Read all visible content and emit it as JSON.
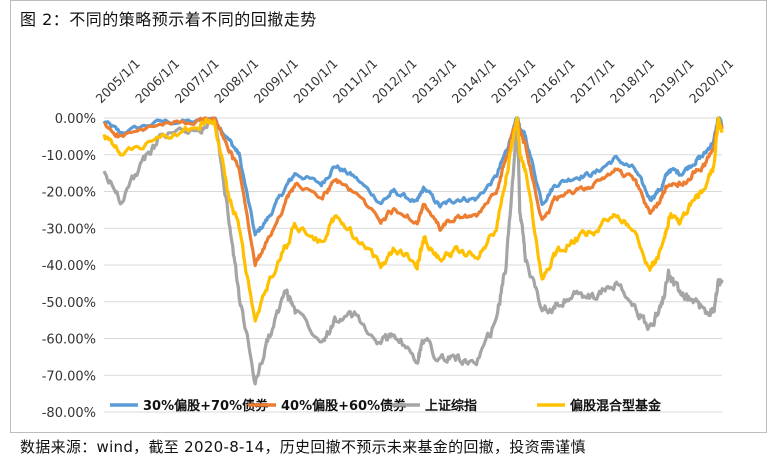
{
  "figure_title": "图 2：不同的策略预示着不同的回撤走势",
  "source_note": "数据来源：wind，截至 2020-8-14，历史回撤不预示未来基金的回撤，投资需谨慎",
  "chart_data": {
    "type": "line",
    "title": "",
    "xlabel": "",
    "ylabel": "",
    "x_tick_labels": [
      "2005/1/1",
      "2006/1/1",
      "2007/1/1",
      "2008/1/1",
      "2009/1/1",
      "2010/1/1",
      "2011/1/1",
      "2012/1/1",
      "2013/1/1",
      "2014/1/1",
      "2015/1/1",
      "2016/1/1",
      "2017/1/1",
      "2018/1/1",
      "2019/1/1",
      "2020/1/1"
    ],
    "x_range": [
      "2005-01-01",
      "2020-08-14"
    ],
    "y_tick_labels": [
      "0.00%",
      "-10.00%",
      "-20.00%",
      "-30.00%",
      "-40.00%",
      "-50.00%",
      "-60.00%",
      "-70.00%",
      "-80.00%"
    ],
    "ylim": [
      -80,
      0
    ],
    "grid": "horizontal",
    "legend_position": "bottom",
    "series": [
      {
        "name": "30%偏股+70%债券",
        "color": "#5b9bd5",
        "x": [
          "2005-01-01",
          "2005-06-01",
          "2006-06-01",
          "2007-06-01",
          "2007-10-15",
          "2008-03-01",
          "2008-06-01",
          "2008-10-28",
          "2009-03-01",
          "2009-08-01",
          "2009-11-01",
          "2010-07-01",
          "2010-11-01",
          "2011-05-01",
          "2011-12-31",
          "2012-05-01",
          "2012-12-01",
          "2013-02-01",
          "2013-06-30",
          "2013-12-01",
          "2014-06-01",
          "2014-12-01",
          "2015-03-01",
          "2015-06-12",
          "2015-07-08",
          "2015-08-26",
          "2016-01-28",
          "2016-06-01",
          "2016-12-01",
          "2017-06-01",
          "2017-12-01",
          "2018-06-01",
          "2018-10-19",
          "2019-02-01",
          "2019-04-15",
          "2019-08-01",
          "2019-12-01",
          "2020-03-01",
          "2020-06-01",
          "2020-07-10",
          "2020-08-14"
        ],
        "values": [
          -1,
          -4,
          -1,
          -1,
          0,
          -6,
          -10,
          -32,
          -27,
          -19,
          -15,
          -18,
          -13,
          -16,
          -23,
          -20,
          -23,
          -19,
          -24,
          -22,
          -22,
          -16,
          -9,
          0,
          -3,
          -5,
          -23,
          -18,
          -16,
          -15,
          -11,
          -14,
          -22,
          -19,
          -14,
          -15,
          -12,
          -10,
          -6,
          0,
          -2
        ]
      },
      {
        "name": "40%偏股+60%债券",
        "color": "#ed7d31",
        "x": [
          "2005-01-01",
          "2005-06-01",
          "2006-06-01",
          "2007-06-01",
          "2007-10-15",
          "2008-03-01",
          "2008-06-01",
          "2008-10-28",
          "2009-03-01",
          "2009-08-01",
          "2009-11-01",
          "2010-07-01",
          "2010-11-01",
          "2011-05-01",
          "2011-12-31",
          "2012-05-01",
          "2012-12-01",
          "2013-02-01",
          "2013-06-30",
          "2013-12-01",
          "2014-06-01",
          "2014-12-01",
          "2015-03-01",
          "2015-06-12",
          "2015-07-08",
          "2015-08-26",
          "2016-01-28",
          "2016-06-01",
          "2016-12-01",
          "2017-06-01",
          "2017-12-01",
          "2018-06-01",
          "2018-10-19",
          "2019-02-01",
          "2019-04-15",
          "2019-08-01",
          "2019-12-01",
          "2020-03-01",
          "2020-06-01",
          "2020-07-10",
          "2020-08-14"
        ],
        "values": [
          -2,
          -5,
          -2,
          -1,
          0,
          -9,
          -14,
          -40,
          -33,
          -23,
          -18,
          -22,
          -17,
          -20,
          -28,
          -25,
          -28,
          -24,
          -30,
          -27,
          -27,
          -20,
          -11,
          0,
          -4,
          -7,
          -28,
          -22,
          -20,
          -18,
          -14,
          -17,
          -26,
          -22,
          -17,
          -18,
          -15,
          -13,
          -8,
          0,
          -3
        ]
      },
      {
        "name": "上证综指",
        "color": "#a5a5a5",
        "x": [
          "2005-01-01",
          "2005-06-01",
          "2006-01-01",
          "2006-06-01",
          "2007-06-01",
          "2007-10-16",
          "2008-03-01",
          "2008-06-01",
          "2008-10-28",
          "2009-03-01",
          "2009-08-04",
          "2009-11-01",
          "2010-07-02",
          "2010-11-01",
          "2011-05-01",
          "2011-12-31",
          "2012-05-01",
          "2012-12-04",
          "2013-02-01",
          "2013-06-27",
          "2013-12-01",
          "2014-06-01",
          "2014-12-01",
          "2015-03-01",
          "2015-06-12",
          "2015-07-08",
          "2015-08-26",
          "2016-01-28",
          "2016-06-01",
          "2016-12-01",
          "2017-06-01",
          "2017-12-01",
          "2018-06-01",
          "2018-10-19",
          "2019-02-01",
          "2019-04-08",
          "2019-08-01",
          "2019-12-01",
          "2020-03-23",
          "2020-06-01",
          "2020-07-10",
          "2020-08-14"
        ],
        "values": [
          -15,
          -22,
          -12,
          -5,
          -3,
          0,
          -28,
          -48,
          -72,
          -60,
          -47,
          -52,
          -60,
          -55,
          -54,
          -62,
          -58,
          -67,
          -59,
          -66,
          -65,
          -68,
          -55,
          -40,
          0,
          -26,
          -38,
          -52,
          -51,
          -48,
          -49,
          -45,
          -52,
          -57,
          -51,
          -42,
          -49,
          -50,
          -53,
          -51,
          -45,
          -44
        ]
      },
      {
        "name": "偏股混合型基金",
        "color": "#ffc000",
        "x": [
          "2005-01-01",
          "2005-06-01",
          "2006-06-01",
          "2007-06-01",
          "2007-10-15",
          "2008-03-01",
          "2008-06-01",
          "2008-10-28",
          "2009-03-01",
          "2009-08-01",
          "2009-11-01",
          "2010-07-01",
          "2010-11-01",
          "2011-05-01",
          "2011-12-31",
          "2012-05-01",
          "2012-12-01",
          "2013-02-01",
          "2013-06-30",
          "2013-12-01",
          "2014-06-01",
          "2014-12-01",
          "2015-03-01",
          "2015-06-12",
          "2015-07-08",
          "2015-08-26",
          "2016-01-28",
          "2016-06-01",
          "2016-12-01",
          "2017-06-01",
          "2017-12-01",
          "2018-06-01",
          "2018-10-19",
          "2019-02-01",
          "2019-04-15",
          "2019-08-01",
          "2019-12-01",
          "2020-03-01",
          "2020-06-01",
          "2020-07-10",
          "2020-08-14"
        ],
        "values": [
          -5,
          -10,
          -6,
          -2,
          0,
          -22,
          -30,
          -56,
          -45,
          -35,
          -29,
          -34,
          -27,
          -32,
          -40,
          -35,
          -40,
          -33,
          -38,
          -36,
          -38,
          -30,
          -16,
          0,
          -10,
          -14,
          -44,
          -37,
          -33,
          -31,
          -26,
          -30,
          -41,
          -36,
          -27,
          -28,
          -22,
          -20,
          -13,
          0,
          -4
        ]
      }
    ]
  }
}
